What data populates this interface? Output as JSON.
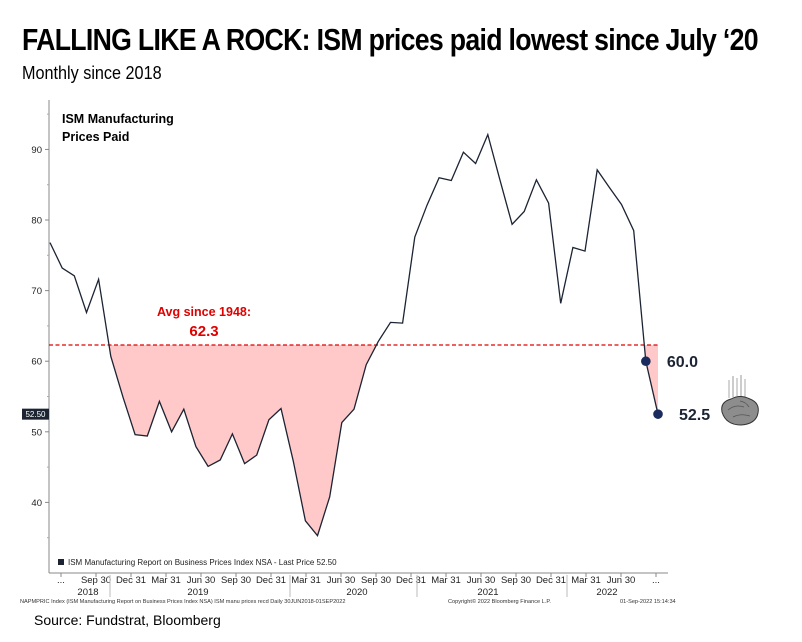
{
  "title": "FALLING LIKE A ROCK: ISM prices paid lowest since July ‘20",
  "subtitle": "Monthly since 2018",
  "source": "Source: Fundstrat, Bloomberg",
  "chart_data": {
    "type": "line",
    "series_label_line1": "ISM Manufacturing",
    "series_label_line2": "Prices Paid",
    "y_ticks": [
      "90",
      "80",
      "70",
      "60",
      "50",
      "40"
    ],
    "y_tick_values": [
      90,
      80,
      70,
      60,
      50,
      40
    ],
    "ylim": [
      30,
      97
    ],
    "last_price_badge": "52.50",
    "x_tick_labels": [
      "...",
      "Sep 30",
      "Dec 31",
      "Mar 31",
      "Jun 30",
      "Sep 30",
      "Dec 31",
      "Mar 31",
      "Jun 30",
      "Sep 30",
      "Dec 31",
      "Mar 31",
      "Jun 30",
      "Sep 30",
      "Dec 31",
      "Mar 31",
      "Jun 30",
      "..."
    ],
    "year_labels": [
      "2018",
      "2019",
      "2020",
      "2021",
      "2022"
    ],
    "x": [
      "2018-06",
      "2018-07",
      "2018-08",
      "2018-09",
      "2018-10",
      "2018-11",
      "2018-12",
      "2019-01",
      "2019-02",
      "2019-03",
      "2019-04",
      "2019-05",
      "2019-06",
      "2019-07",
      "2019-08",
      "2019-09",
      "2019-10",
      "2019-11",
      "2019-12",
      "2020-01",
      "2020-02",
      "2020-03",
      "2020-04",
      "2020-05",
      "2020-06",
      "2020-07",
      "2020-08",
      "2020-09",
      "2020-10",
      "2020-11",
      "2020-12",
      "2021-01",
      "2021-02",
      "2021-03",
      "2021-04",
      "2021-05",
      "2021-06",
      "2021-07",
      "2021-08",
      "2021-09",
      "2021-10",
      "2021-11",
      "2021-12",
      "2022-01",
      "2022-02",
      "2022-03",
      "2022-04",
      "2022-05",
      "2022-06",
      "2022-07",
      "2022-08"
    ],
    "values": [
      76.8,
      73.2,
      72.1,
      66.9,
      71.6,
      60.7,
      54.9,
      49.6,
      49.4,
      54.3,
      50.0,
      53.2,
      47.9,
      45.1,
      46.0,
      49.7,
      45.5,
      46.7,
      51.7,
      53.3,
      45.9,
      37.4,
      35.3,
      40.8,
      51.3,
      53.2,
      59.5,
      62.8,
      65.5,
      65.4,
      77.6,
      82.1,
      86.0,
      85.6,
      89.6,
      88.0,
      92.1,
      85.7,
      79.4,
      81.2,
      85.7,
      82.4,
      68.2,
      76.1,
      75.6,
      87.1,
      84.6,
      82.2,
      78.5,
      60.0,
      52.5
    ],
    "average": {
      "label": "Avg since 1948:",
      "value": 62.3,
      "value_label": "62.3"
    },
    "callouts": [
      {
        "label": "60.0",
        "value": 60.0
      },
      {
        "label": "52.5",
        "value": 52.5
      }
    ],
    "legend": "ISM Manufacturing Report on Business Prices Index NSA - Last Price 52.50",
    "footer_left": "NAPMPRIC Index (ISM Manufacturing Report on Business Prices Index NSA) ISM manu prices recd  Daily 30JUN2018-01SEP2022",
    "footer_center": "Copyright© 2022 Bloomberg Finance L.P.",
    "footer_right": "01-Sep-2022 15:14:34",
    "colors": {
      "line": "#1c2433",
      "fill": "#ffc9c9",
      "average": "#e00000",
      "marker": "#1a2b5e"
    },
    "rock_icon": "falling-rock-icon"
  }
}
